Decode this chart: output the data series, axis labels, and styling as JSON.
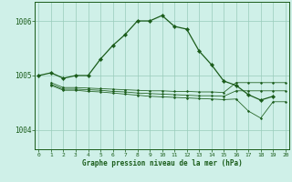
{
  "bg_color": "#cff0e8",
  "plot_bg_color": "#cff0e8",
  "grid_color": "#99ccbb",
  "line_color": "#1a5c1a",
  "xlabel": "Graphe pression niveau de la mer (hPa)",
  "xticks": [
    0,
    1,
    2,
    3,
    4,
    5,
    6,
    7,
    8,
    9,
    10,
    11,
    12,
    13,
    14,
    15,
    16,
    17,
    18,
    19,
    20
  ],
  "yticks": [
    1004,
    1005,
    1006
  ],
  "ylim": [
    1003.65,
    1006.35
  ],
  "xlim": [
    -0.3,
    20.3
  ],
  "series_main": {
    "x": [
      0,
      1,
      2,
      3,
      4,
      5,
      6,
      7,
      8,
      9,
      10,
      11,
      12,
      13,
      14,
      15,
      16,
      17,
      18,
      19
    ],
    "y": [
      1005.0,
      1005.05,
      1004.95,
      1005.0,
      1005.0,
      1005.3,
      1005.55,
      1005.75,
      1006.0,
      1006.0,
      1006.1,
      1005.9,
      1005.85,
      1005.45,
      1005.2,
      1004.9,
      1004.82,
      1004.65,
      1004.55,
      1004.62
    ]
  },
  "series_a": {
    "x": [
      1,
      2,
      3,
      4,
      5,
      6,
      7,
      8,
      9,
      10,
      11,
      12,
      13,
      14,
      15,
      16,
      17,
      18,
      19,
      20
    ],
    "y": [
      1004.87,
      1004.78,
      1004.78,
      1004.77,
      1004.76,
      1004.75,
      1004.74,
      1004.73,
      1004.72,
      1004.72,
      1004.71,
      1004.71,
      1004.7,
      1004.7,
      1004.69,
      1004.87,
      1004.87,
      1004.87,
      1004.87,
      1004.87
    ]
  },
  "series_b": {
    "x": [
      1,
      2,
      3,
      4,
      5,
      6,
      7,
      8,
      9,
      10,
      11,
      12,
      13,
      14,
      15,
      16,
      17,
      18,
      19,
      20
    ],
    "y": [
      1004.82,
      1004.73,
      1004.73,
      1004.71,
      1004.7,
      1004.68,
      1004.66,
      1004.64,
      1004.62,
      1004.61,
      1004.6,
      1004.59,
      1004.58,
      1004.57,
      1004.56,
      1004.57,
      1004.35,
      1004.22,
      1004.52,
      1004.52
    ]
  },
  "series_c": {
    "x": [
      1,
      2,
      3,
      4,
      5,
      6,
      7,
      8,
      9,
      10,
      11,
      12,
      13,
      14,
      15,
      16,
      17,
      18,
      19,
      20
    ],
    "y": [
      1004.84,
      1004.75,
      1004.75,
      1004.74,
      1004.73,
      1004.71,
      1004.7,
      1004.68,
      1004.67,
      1004.66,
      1004.65,
      1004.64,
      1004.63,
      1004.63,
      1004.62,
      1004.72,
      1004.72,
      1004.72,
      1004.72,
      1004.72
    ]
  }
}
